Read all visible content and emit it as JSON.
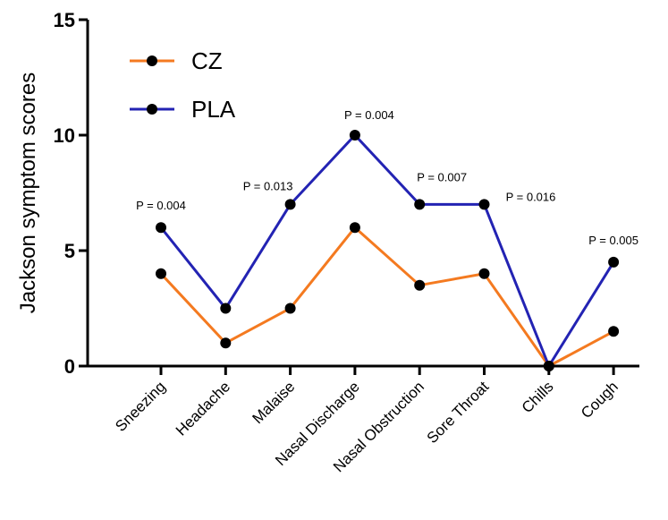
{
  "chart_data": {
    "type": "line",
    "title": "",
    "xlabel": "",
    "ylabel": "Jackson symptom scores",
    "ylim": [
      0,
      15
    ],
    "yticks": [
      "0",
      "5",
      "10",
      "15"
    ],
    "categories": [
      "Sneezing",
      "Headache",
      "Malaise",
      "Nasal Discharge",
      "Nasal Obstruction",
      "Sore Throat",
      "Chills",
      "Cough"
    ],
    "series": [
      {
        "name": "CZ",
        "color": "#f47a20",
        "values": [
          4,
          1,
          2.5,
          6,
          3.5,
          4,
          0,
          1.5
        ]
      },
      {
        "name": "PLA",
        "color": "#2323b3",
        "values": [
          6,
          2.5,
          7,
          10,
          7,
          7,
          0,
          4.5
        ]
      }
    ],
    "annotations": [
      {
        "category": "Sneezing",
        "text": "P = 0.004"
      },
      {
        "category": "Malaise",
        "text": "P = 0.013"
      },
      {
        "category": "Nasal Discharge",
        "text": "P = 0.004"
      },
      {
        "category": "Nasal Obstruction",
        "text": "P = 0.007"
      },
      {
        "category": "Sore Throat",
        "text": "P = 0.016"
      },
      {
        "category": "Cough",
        "text": "P = 0.005"
      }
    ],
    "legend_position": "top-left",
    "grid": false
  }
}
